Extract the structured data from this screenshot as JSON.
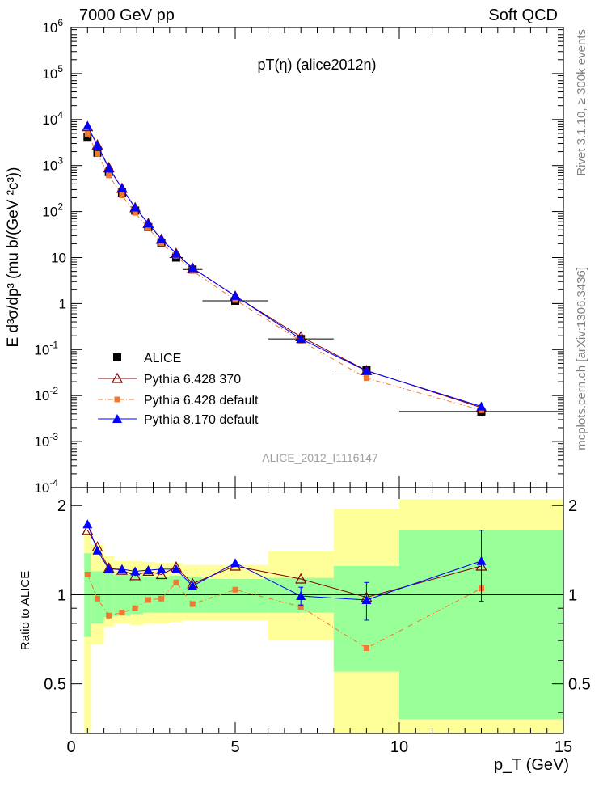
{
  "header": {
    "left": "7000 GeV pp",
    "right": "Soft QCD"
  },
  "side_labels": {
    "rivet": "Rivet 3.1.10, ≥ 300k events",
    "mcplots": "mcplots.cern.ch [arXiv:1306.3436]"
  },
  "chart_data": [
    {
      "type": "scatter",
      "panel": "main",
      "title": "pT(η) (alice2012n)",
      "watermark": "ALICE_2012_I1116147",
      "ylabel": "E d³σ/dp³ (mu b/(GeV ²c³))",
      "yscale": "log",
      "xlim": [
        0,
        15
      ],
      "ylim": [
        0.0001,
        1000000
      ],
      "legend_position": "bottom-left",
      "colors": {
        "data": "#000000",
        "p6_370": "#800000",
        "p6_default": "#f07830",
        "p8": "#0000ff"
      },
      "x": [
        0.5,
        0.8,
        1.15,
        1.55,
        1.95,
        2.35,
        2.75,
        3.2,
        3.7,
        5.0,
        7.0,
        9.0,
        12.5
      ],
      "x_errors": [
        0.1,
        0.1,
        0.15,
        0.15,
        0.15,
        0.15,
        0.15,
        0.2,
        0.3,
        1.0,
        1.0,
        1.0,
        2.5
      ],
      "series": [
        {
          "name": "ALICE",
          "style": "data",
          "values": [
            4200,
            1900,
            720,
            260,
            105,
            46,
            21,
            10,
            5.5,
            1.15,
            0.17,
            0.036,
            0.0045
          ],
          "errors": [
            500,
            200,
            60,
            20,
            9,
            4,
            2,
            1,
            0.5,
            0.12,
            0.02,
            0.006,
            0.001
          ]
        },
        {
          "name": "Pythia 6.428 370",
          "style": "p6_370",
          "values": [
            7000,
            2800,
            900,
            320,
            121,
            55,
            25,
            12.3,
            5.9,
            1.45,
            0.19,
            0.035,
            0.0055
          ]
        },
        {
          "name": "Pythia 6.428 default",
          "style": "p6_default",
          "values": [
            4900,
            1800,
            610,
            225,
            94,
            44,
            20.4,
            11,
            5.1,
            1.2,
            0.155,
            0.024,
            0.0048
          ]
        },
        {
          "name": "Pythia 8.170 default",
          "style": "p8",
          "values": [
            7300,
            2700,
            880,
            320,
            122,
            55,
            25.2,
            12.2,
            5.9,
            1.47,
            0.17,
            0.0345,
            0.0058
          ]
        }
      ]
    },
    {
      "type": "scatter",
      "panel": "ratio",
      "ylabel": "Ratio to ALICE",
      "xlabel": "p_T (GeV)",
      "xlim": [
        0,
        15
      ],
      "ylim": [
        0.34,
        2.3
      ],
      "x_ticks": [
        "0",
        "5",
        "10",
        "15"
      ],
      "y_ticks": [
        "0.5",
        "1",
        "2"
      ],
      "bands": {
        "edges": [
          0.4,
          0.6,
          1.0,
          1.3,
          1.8,
          2.2,
          2.6,
          3.0,
          3.4,
          4.0,
          6.0,
          8.0,
          10.0,
          15.0
        ],
        "green": [
          [
            0.72,
            1.38
          ],
          [
            0.8,
            1.2
          ],
          [
            0.84,
            1.18
          ],
          [
            0.85,
            1.17
          ],
          [
            0.86,
            1.16
          ],
          [
            0.87,
            1.15
          ],
          [
            0.87,
            1.15
          ],
          [
            0.87,
            1.16
          ],
          [
            0.87,
            1.15
          ],
          [
            0.87,
            1.13
          ],
          [
            0.87,
            1.14
          ],
          [
            0.55,
            1.25
          ],
          [
            0.38,
            1.65
          ]
        ],
        "yellow": [
          [
            0.34,
            1.62
          ],
          [
            0.68,
            1.48
          ],
          [
            0.78,
            1.35
          ],
          [
            0.8,
            1.3
          ],
          [
            0.79,
            1.3
          ],
          [
            0.8,
            1.29
          ],
          [
            0.8,
            1.28
          ],
          [
            0.81,
            1.28
          ],
          [
            0.82,
            1.26
          ],
          [
            0.82,
            1.26
          ],
          [
            0.7,
            1.4
          ],
          [
            0.34,
            1.95
          ],
          [
            0.34,
            2.1
          ]
        ]
      },
      "series": [
        {
          "name": "Pythia 6.428 370",
          "style": "p6_370",
          "values": [
            1.65,
            1.45,
            1.23,
            1.21,
            1.16,
            1.2,
            1.17,
            1.24,
            1.09,
            1.25,
            1.13,
            0.98,
            1.25
          ]
        },
        {
          "name": "Pythia 6.428 default",
          "style": "p6_default",
          "values": [
            1.17,
            0.97,
            0.85,
            0.87,
            0.9,
            0.96,
            0.97,
            1.1,
            0.93,
            1.04,
            0.91,
            0.66,
            1.05
          ]
        },
        {
          "name": "Pythia 8.170 default",
          "style": "p8",
          "values": [
            1.73,
            1.41,
            1.22,
            1.22,
            1.2,
            1.21,
            1.22,
            1.22,
            1.07,
            1.28,
            0.99,
            0.96,
            1.3
          ],
          "errors": [
            0.03,
            0.03,
            0.02,
            0.02,
            0.02,
            0.02,
            0.02,
            0.03,
            0.04,
            0.04,
            0.07,
            0.14,
            0.35
          ]
        }
      ]
    }
  ]
}
